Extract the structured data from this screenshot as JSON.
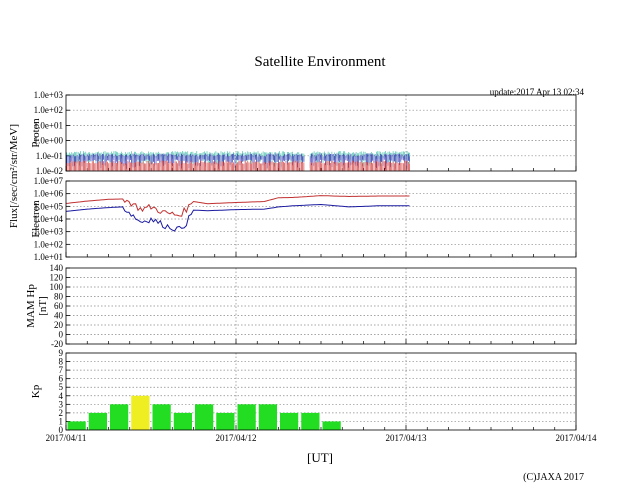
{
  "title": "Satellite Environment",
  "update": "update:2017 Apr 13 02:34",
  "copyright": "(C)JAXA 2017",
  "x_unit": "[UT]",
  "flux_label": "Flux[/sec/cm²/str/MeV]",
  "chart_data": [
    {
      "name": "proton",
      "type": "line",
      "ylabel": "Proton",
      "yscale": "log",
      "ylim": [
        0.01,
        1000
      ],
      "yticks": [
        "1.0e+03",
        "1.0e+02",
        "1.0e+01",
        "1.0e+00",
        "1.0e-01",
        "1.0e-02"
      ],
      "x_end": "2017/04/13 00:34",
      "series": [
        {
          "color": "#2db8a0",
          "level": 0.13
        },
        {
          "color": "#1a1aaa",
          "level": 0.09
        },
        {
          "color": "#cc2222",
          "level": 0.03
        }
      ]
    },
    {
      "name": "electron",
      "type": "line",
      "ylabel": "Electron",
      "yscale": "log",
      "ylim": [
        10,
        10000000
      ],
      "yticks": [
        "1.0e+07",
        "1.0e+06",
        "1.0e+05",
        "1.0e+04",
        "1.0e+03",
        "1.0e+02",
        "1.0e+01"
      ],
      "series": [
        {
          "color": "#c03030",
          "points": [
            [
              "04/11 00:00",
              170000
            ],
            [
              "04/11 03:00",
              260000
            ],
            [
              "04/11 06:00",
              360000
            ],
            [
              "04/11 08:00",
              380000
            ],
            [
              "04/11 09:30",
              150000
            ],
            [
              "04/11 10:30",
              60000
            ],
            [
              "04/11 12:00",
              90000
            ],
            [
              "04/11 14:00",
              30000
            ],
            [
              "04/11 16:00",
              20000
            ],
            [
              "04/11 17:00",
              60000
            ],
            [
              "04/11 18:00",
              240000
            ],
            [
              "04/11 20:00",
              160000
            ],
            [
              "04/12 00:00",
              200000
            ],
            [
              "04/12 04:00",
              240000
            ],
            [
              "04/12 06:00",
              480000
            ],
            [
              "04/12 08:00",
              500000
            ],
            [
              "04/12 12:00",
              700000
            ],
            [
              "04/12 16:00",
              600000
            ],
            [
              "04/12 20:00",
              650000
            ],
            [
              "04/13 00:30",
              650000
            ]
          ]
        },
        {
          "color": "#1a1aa0",
          "points": [
            [
              "04/11 00:00",
              40000
            ],
            [
              "04/11 03:00",
              60000
            ],
            [
              "04/11 06:00",
              80000
            ],
            [
              "04/11 08:00",
              90000
            ],
            [
              "04/11 09:30",
              18000
            ],
            [
              "04/11 10:30",
              6000
            ],
            [
              "04/11 12:00",
              10000
            ],
            [
              "04/11 14:00",
              3000
            ],
            [
              "04/11 16:00",
              1500
            ],
            [
              "04/11 17:00",
              5000
            ],
            [
              "04/11 18:00",
              50000
            ],
            [
              "04/11 20:00",
              45000
            ],
            [
              "04/12 00:00",
              55000
            ],
            [
              "04/12 04:00",
              60000
            ],
            [
              "04/12 06:00",
              90000
            ],
            [
              "04/12 08:00",
              110000
            ],
            [
              "04/12 12:00",
              140000
            ],
            [
              "04/12 16:00",
              90000
            ],
            [
              "04/12 20:00",
              110000
            ],
            [
              "04/13 00:30",
              110000
            ]
          ]
        }
      ]
    },
    {
      "name": "mam",
      "type": "line",
      "ylabel": "MAM Hp",
      "yunit": "[nT]",
      "ylim": [
        -20,
        140
      ],
      "yticks": [
        "140",
        "120",
        "100",
        "80",
        "60",
        "40",
        "20",
        "0",
        "-20"
      ],
      "series": []
    },
    {
      "name": "kp",
      "type": "bar",
      "ylabel": "Kp",
      "ylim": [
        0,
        9
      ],
      "yticks": [
        "9",
        "8",
        "7",
        "6",
        "5",
        "4",
        "3",
        "2",
        "1",
        "0"
      ],
      "bar_width_hours": 3,
      "values": [
        1,
        2,
        3,
        4,
        3,
        2,
        3,
        2,
        3,
        3,
        2,
        2,
        1
      ],
      "colors": [
        "#22dd22",
        "#22dd22",
        "#22dd22",
        "#eeee22",
        "#22dd22",
        "#22dd22",
        "#22dd22",
        "#22dd22",
        "#22dd22",
        "#22dd22",
        "#22dd22",
        "#22dd22",
        "#22dd22"
      ],
      "xticks": [
        "2017/04/11",
        "2017/04/12",
        "2017/04/13",
        "2017/04/14"
      ]
    }
  ]
}
